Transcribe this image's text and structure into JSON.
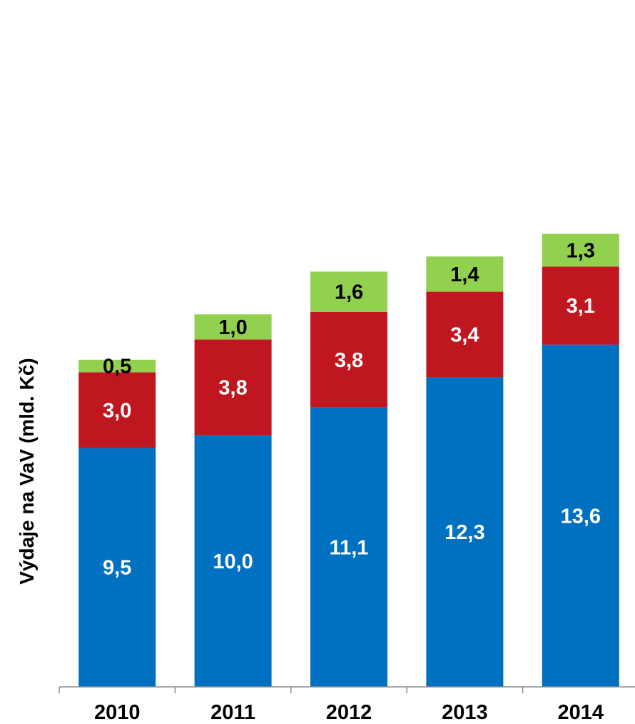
{
  "chart_data": {
    "type": "bar",
    "stacked": true,
    "title": "",
    "xlabel": "",
    "ylabel": "Výdaje na VaV (mld. Kč)",
    "ylim": [
      0,
      24
    ],
    "grid": false,
    "legend": "none",
    "categories": [
      "2010",
      "2011",
      "2012",
      "2013",
      "2014"
    ],
    "series": [
      {
        "color": "#0070C0",
        "label_color": "#ffffff",
        "values": [
          9.5,
          10.0,
          11.1,
          12.3,
          13.6
        ],
        "labels": [
          "9,5",
          "10,0",
          "11,1",
          "12,3",
          "13,6"
        ]
      },
      {
        "color": "#C0161F",
        "label_color": "#ffffff",
        "values": [
          3.0,
          3.8,
          3.8,
          3.4,
          3.1
        ],
        "labels": [
          "3,0",
          "3,8",
          "3,8",
          "3,4",
          "3,1"
        ]
      },
      {
        "color": "#92D050",
        "label_color": "#000000",
        "values": [
          0.5,
          1.0,
          1.6,
          1.4,
          1.3
        ],
        "labels": [
          "0,5",
          "1,0",
          "1,6",
          "1,4",
          "1,3"
        ]
      }
    ]
  }
}
